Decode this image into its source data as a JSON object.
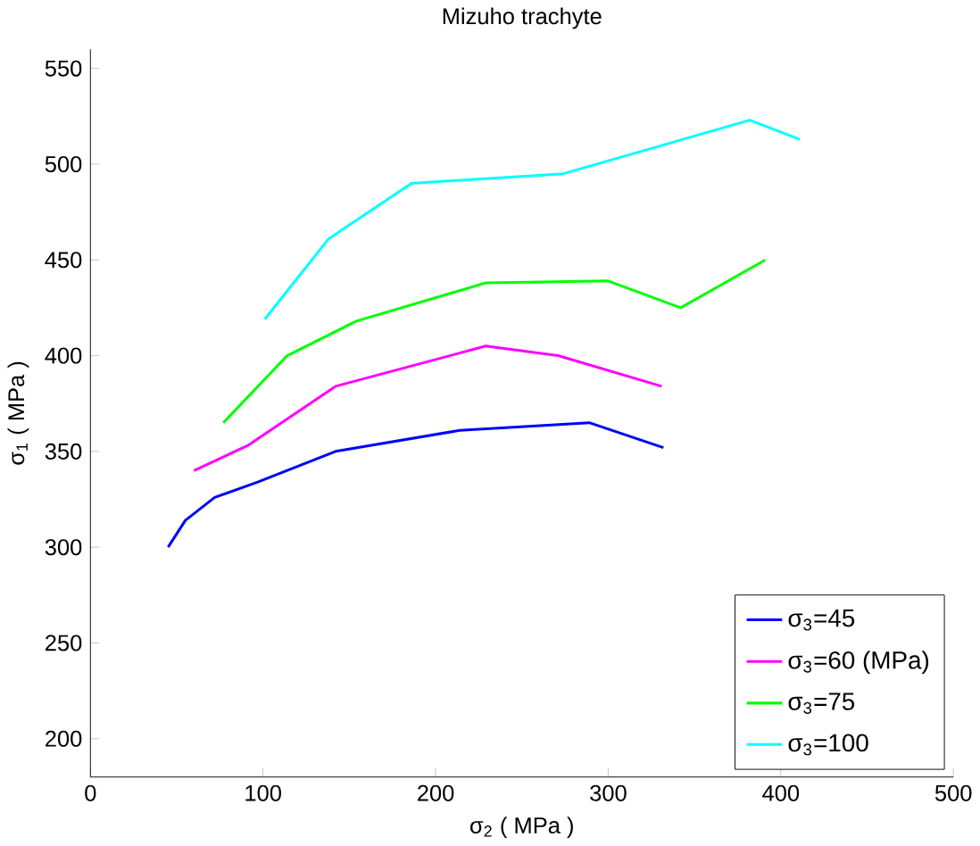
{
  "chart_data": {
    "type": "line",
    "title": "Mizuho trachyte",
    "xlabel": "σ$_{2}$ ( MPa )",
    "ylabel": "σ$_{1}$ ( MPa )",
    "xlim": [
      0,
      500
    ],
    "ylim": [
      180,
      560
    ],
    "xticks": [
      0,
      100,
      200,
      300,
      400,
      500
    ],
    "yticks": [
      200,
      250,
      300,
      350,
      400,
      450,
      500,
      550
    ],
    "grid": false,
    "legend": "bottom right",
    "marker": "none",
    "line_style": "solid",
    "series": [
      {
        "name": "σ$_{3}$=45",
        "color": "#0000ff",
        "x": [
          45,
          55,
          72,
          97,
          142,
          214,
          289,
          332
        ],
        "values": [
          300,
          314,
          326,
          334,
          350,
          361,
          365,
          352
        ]
      },
      {
        "name": "σ$_{3}$=60  (MPa)",
        "color": "#ff00ff",
        "x": [
          60,
          91,
          142,
          229,
          271,
          331
        ],
        "values": [
          340,
          353,
          384,
          405,
          400,
          384
        ]
      },
      {
        "name": "σ$_{3}$=75",
        "color": "#00ff00",
        "x": [
          77,
          114,
          154,
          229,
          300,
          342,
          391
        ],
        "values": [
          365,
          400,
          418,
          438,
          439,
          425,
          450
        ]
      },
      {
        "name": "σ$_{3}$=100",
        "color": "#00ffff",
        "x": [
          101,
          138,
          186,
          274,
          382,
          411
        ],
        "values": [
          419,
          461,
          490,
          495,
          523,
          513
        ]
      }
    ]
  }
}
